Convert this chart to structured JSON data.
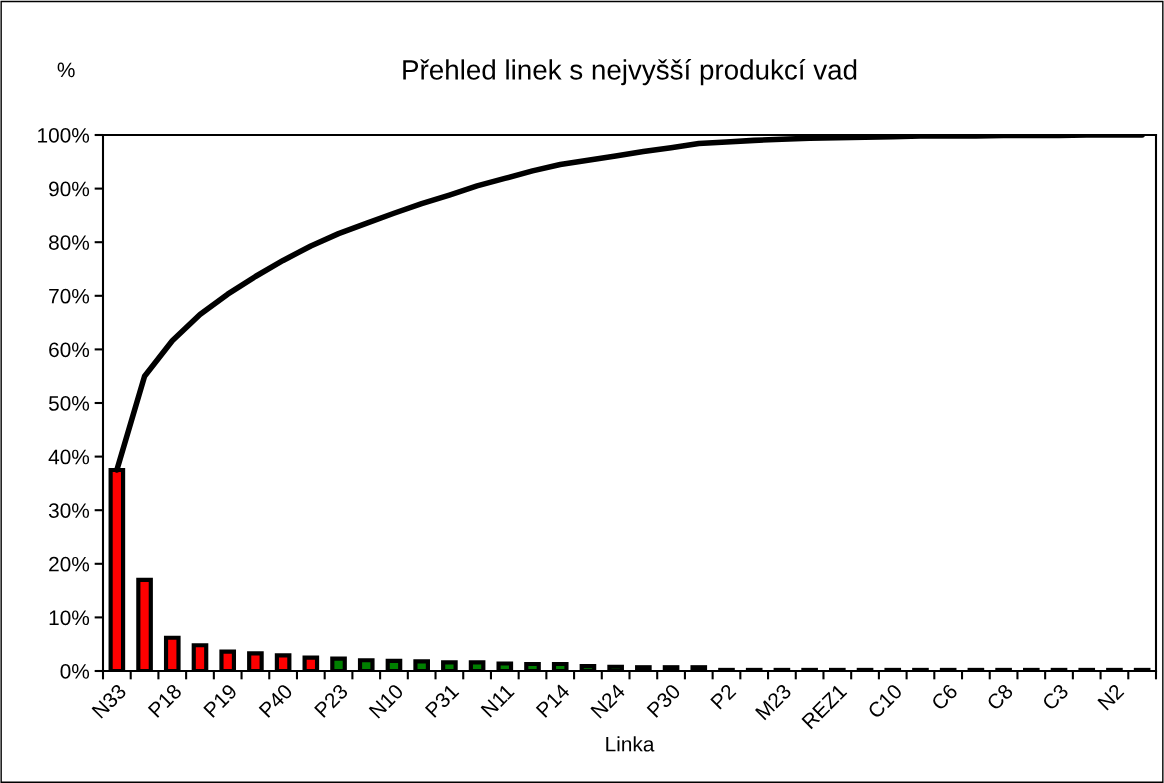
{
  "chart_data": {
    "type": "bar",
    "title": "Přehled linek s nejvyšší produkcí vad",
    "xlabel": "Linka",
    "ylabel": "%",
    "categories": [
      "N33",
      null,
      "P18",
      null,
      "P19",
      null,
      "P40",
      null,
      "P23",
      null,
      "N10",
      null,
      "P31",
      null,
      "N11",
      null,
      "P14",
      null,
      "N24",
      null,
      "P30",
      null,
      "P2",
      null,
      "M23",
      null,
      "REZ1",
      null,
      "C10",
      null,
      "C6",
      null,
      "C8",
      null,
      "C3",
      null,
      "N2",
      null
    ],
    "series": [
      {
        "values": [
          37.5,
          17,
          6.2,
          4.8,
          3.6,
          3.3,
          2.9,
          2.5,
          2.3,
          2.0,
          1.9,
          1.8,
          1.6,
          1.6,
          1.4,
          1.3,
          1.3,
          0.9,
          0.8,
          0.7,
          0.7,
          0.7,
          0.2,
          0.2,
          0.2,
          0.2,
          0.2,
          0.2,
          0.2,
          0.2,
          0.2,
          0.2,
          0.2,
          0.2,
          0.2,
          0.2,
          0.2,
          0.2
        ],
        "colors": [
          "#ff0000",
          "#ff0000",
          "#ff0000",
          "#ff0000",
          "#ff0000",
          "#ff0000",
          "#ff0000",
          "#ff0000",
          "#008000",
          "#008000",
          "#008000",
          "#008000",
          "#008000",
          "#008000",
          "#008000",
          "#008000",
          "#008000",
          "#008000",
          "#008000",
          "#008000",
          "#008000",
          "#008000",
          "#008000",
          "#008000",
          "#008000",
          "#008000",
          "#008000",
          "#008000",
          "#008000",
          "#008000",
          "#008000",
          "#008000",
          "#008000",
          "#008000",
          "#008000",
          "#008000",
          "#008000",
          "#008000"
        ]
      },
      {
        "type": "line",
        "color": "#000000",
        "values": [
          37.5,
          55,
          61.6,
          66.5,
          70.3,
          73.6,
          76.6,
          79.3,
          81.6,
          83.5,
          85.4,
          87.2,
          88.8,
          90.5,
          91.9,
          93.3,
          94.5,
          95.3,
          96.1,
          96.9,
          97.6,
          98.4,
          98.7,
          99.0,
          99.2,
          99.4,
          99.5,
          99.6,
          99.7,
          99.8,
          99.8,
          99.8,
          99.9,
          99.9,
          99.9,
          100,
          100,
          100
        ]
      }
    ],
    "ylim": [
      0,
      100
    ],
    "yticks": [
      {
        "value": 0,
        "label": "0%"
      },
      {
        "value": 10,
        "label": "10%"
      },
      {
        "value": 20,
        "label": "20%"
      },
      {
        "value": 30,
        "label": "30%"
      },
      {
        "value": 40,
        "label": "40%"
      },
      {
        "value": 50,
        "label": "50%"
      },
      {
        "value": 60,
        "label": "60%"
      },
      {
        "value": 70,
        "label": "70%"
      },
      {
        "value": 80,
        "label": "80%"
      },
      {
        "value": 90,
        "label": "90%"
      },
      {
        "value": 100,
        "label": "100%"
      }
    ],
    "grid": false,
    "legend": false
  }
}
